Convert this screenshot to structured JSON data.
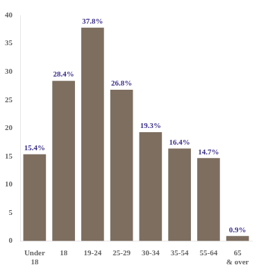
{
  "chart_data": {
    "type": "bar",
    "categories": [
      "Under\n18",
      "18",
      "19-24",
      "25-29",
      "30-34",
      "35-54",
      "55-64",
      "65\n& over"
    ],
    "values": [
      15.4,
      28.4,
      37.8,
      26.8,
      19.3,
      16.4,
      14.7,
      0.9
    ],
    "value_labels": [
      "15.4%",
      "28.4%",
      "37.8%",
      "26.8%",
      "19.3%",
      "16.4%",
      "14.7%",
      "0.9%"
    ],
    "data_labels": true,
    "color": "#7d6e60",
    "ylim": [
      0,
      40
    ],
    "yticks": [
      0,
      5,
      10,
      15,
      20,
      25,
      30,
      35,
      40
    ],
    "grid": false
  }
}
